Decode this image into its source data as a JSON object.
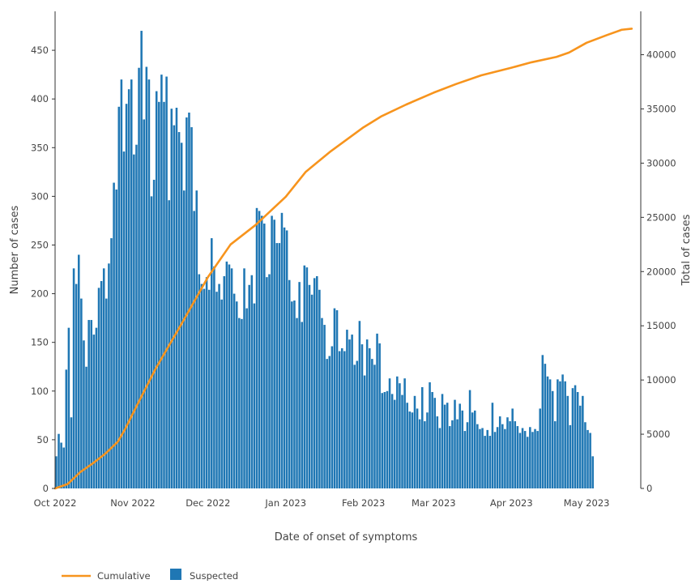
{
  "chart_data": {
    "type": "bar+line",
    "x_axis": {
      "label": "Date of onset of symptoms",
      "tick_labels": [
        "Oct 2022",
        "Nov 2022",
        "Dec 2022",
        "Jan 2023",
        "Feb 2023",
        "Mar 2023",
        "Apr 2023",
        "May 2023"
      ],
      "tick_day_index": [
        0,
        31,
        61,
        92,
        123,
        151,
        182,
        212
      ],
      "range_days": [
        0,
        232
      ]
    },
    "y_left": {
      "label": "Number of cases",
      "ticks": [
        "0",
        "50",
        "100",
        "150",
        "200",
        "250",
        "300",
        "350",
        "400",
        "450"
      ],
      "ylim": [
        0,
        490
      ]
    },
    "y_right": {
      "label": "Total of cases",
      "ticks": [
        "0",
        "5000",
        "10000",
        "15000",
        "20000",
        "25000",
        "30000",
        "35000",
        "40000"
      ],
      "ylim": [
        0,
        44000
      ]
    },
    "grid": false,
    "legend": {
      "placement": "bottom-left",
      "items": [
        {
          "label": "Cumulative",
          "color": "#f7941d",
          "kind": "line"
        },
        {
          "label": "Suspected",
          "color": "#1f77b4",
          "kind": "bar"
        }
      ]
    },
    "series": [
      {
        "name": "Suspected",
        "type": "bar",
        "color": "#1f77b4",
        "start_day": 0,
        "values": [
          33,
          56,
          47,
          42,
          122,
          165,
          73,
          226,
          210,
          240,
          195,
          152,
          125,
          173,
          173,
          158,
          165,
          206,
          213,
          226,
          195,
          231,
          257,
          314,
          307,
          392,
          420,
          346,
          395,
          410,
          420,
          343,
          353,
          432,
          470,
          379,
          433,
          420,
          300,
          317,
          408,
          397,
          425,
          397,
          423,
          296,
          390,
          373,
          391,
          366,
          355,
          306,
          381,
          386,
          371,
          285,
          306,
          220,
          210,
          205,
          217,
          204,
          257,
          228,
          202,
          210,
          194,
          218,
          233,
          230,
          226,
          200,
          192,
          175,
          174,
          226,
          185,
          209,
          219,
          190,
          288,
          285,
          280,
          272,
          217,
          220,
          280,
          276,
          252,
          252,
          283,
          268,
          265,
          214,
          192,
          193,
          175,
          212,
          171,
          229,
          227,
          209,
          199,
          216,
          218,
          204,
          175,
          168,
          133,
          136,
          146,
          185,
          183,
          141,
          144,
          141,
          163,
          153,
          158,
          127,
          131,
          172,
          148,
          116,
          153,
          144,
          133,
          127,
          159,
          149,
          98,
          99,
          100,
          113,
          97,
          91,
          115,
          108,
          96,
          113,
          88,
          79,
          78,
          95,
          82,
          71,
          104,
          69,
          78,
          109,
          99,
          93,
          74,
          62,
          97,
          86,
          88,
          64,
          70,
          91,
          71,
          87,
          80,
          59,
          68,
          101,
          78,
          80,
          66,
          61,
          62,
          54,
          60,
          54,
          88,
          58,
          63,
          74,
          66,
          61,
          73,
          69,
          82,
          69,
          64,
          57,
          62,
          59,
          53,
          63,
          58,
          61,
          59,
          82,
          137,
          128,
          115,
          112,
          100,
          69,
          112,
          110,
          117,
          110,
          95,
          65,
          103,
          106,
          99,
          85,
          95,
          68,
          60,
          57,
          33
        ]
      },
      {
        "name": "Cumulative",
        "type": "line",
        "color": "#f7941d",
        "points": [
          [
            0,
            0
          ],
          [
            5,
            400
          ],
          [
            10,
            1500
          ],
          [
            15,
            2300
          ],
          [
            20,
            3200
          ],
          [
            25,
            4300
          ],
          [
            28,
            5500
          ],
          [
            31,
            6900
          ],
          [
            40,
            11000
          ],
          [
            50,
            15000
          ],
          [
            61,
            19500
          ],
          [
            70,
            22500
          ],
          [
            80,
            24300
          ],
          [
            92,
            26900
          ],
          [
            100,
            29200
          ],
          [
            110,
            31100
          ],
          [
            123,
            33300
          ],
          [
            130,
            34300
          ],
          [
            140,
            35400
          ],
          [
            151,
            36500
          ],
          [
            160,
            37300
          ],
          [
            170,
            38100
          ],
          [
            182,
            38800
          ],
          [
            190,
            39300
          ],
          [
            200,
            39800
          ],
          [
            205,
            40200
          ],
          [
            212,
            41100
          ],
          [
            220,
            41800
          ],
          [
            226,
            42300
          ],
          [
            230,
            42400
          ]
        ]
      }
    ]
  }
}
